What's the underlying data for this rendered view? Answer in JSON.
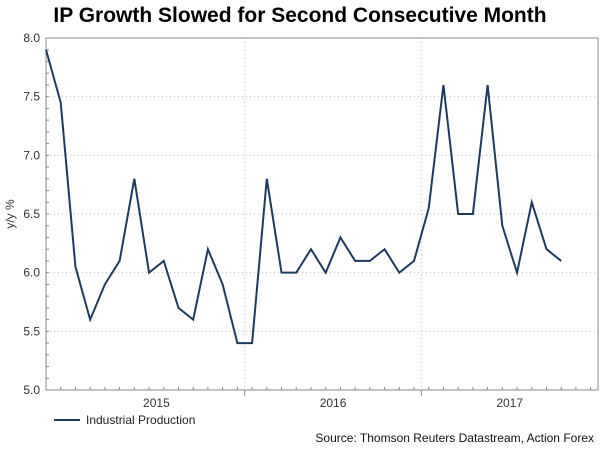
{
  "chart_data": {
    "type": "line",
    "title": "IP Growth Slowed for Second Consecutive Month",
    "xlabel": "",
    "ylabel": "y/y %",
    "ylim": [
      5.0,
      8.0
    ],
    "yticks": [
      "5.0",
      "5.5",
      "6.0",
      "6.5",
      "7.0",
      "7.5",
      "8.0"
    ],
    "ytick_values": [
      5.0,
      5.5,
      6.0,
      6.5,
      7.0,
      7.5,
      8.0
    ],
    "xticks": [
      {
        "label": "2015",
        "month_index": 7.5
      },
      {
        "label": "2016",
        "month_index": 19.5
      },
      {
        "label": "2017",
        "month_index": 31.5
      }
    ],
    "year_boundaries": [
      13.5,
      25.5
    ],
    "x_range": [
      0,
      37.5
    ],
    "grid": true,
    "legend_position": "bottom-left",
    "series": [
      {
        "name": "Industrial Production",
        "color": "#1f3a5f",
        "values": [
          7.9,
          7.45,
          6.05,
          5.6,
          5.9,
          6.1,
          6.8,
          6.0,
          6.1,
          5.7,
          5.6,
          6.2,
          5.9,
          5.4,
          5.4,
          6.8,
          6.0,
          6.0,
          6.2,
          6.0,
          6.3,
          6.1,
          6.1,
          6.2,
          6.0,
          6.1,
          6.55,
          7.6,
          6.5,
          6.5,
          7.6,
          6.4,
          6.0,
          6.6,
          6.2,
          6.1
        ]
      }
    ],
    "source": "Source: Thomson Reuters Datastream, Action Forex"
  }
}
